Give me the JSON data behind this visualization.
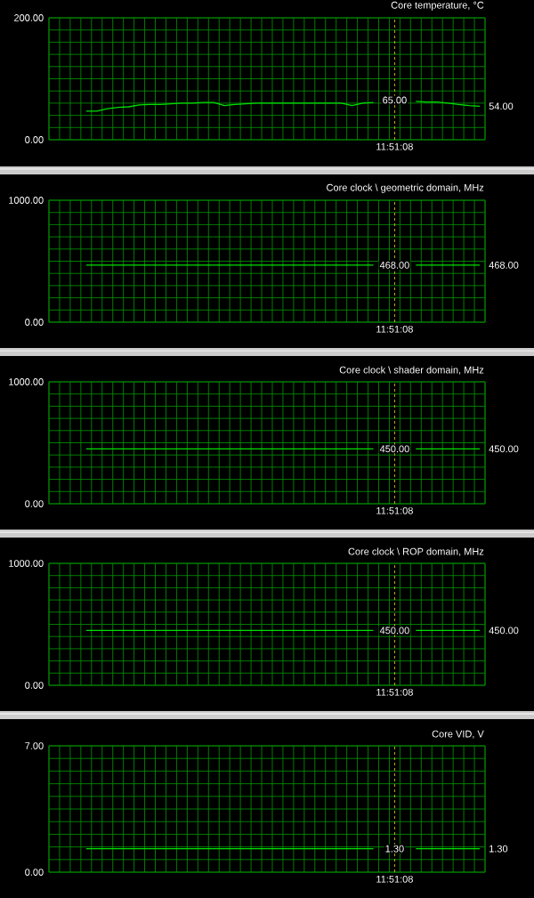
{
  "chart_data": [
    {
      "type": "line",
      "title": "Core temperature, °C",
      "grid": true,
      "categories": [
        null,
        null,
        null,
        null,
        null,
        null,
        null,
        null,
        null,
        null,
        null,
        null,
        null,
        null,
        null,
        null,
        null,
        null,
        null,
        null,
        null,
        null,
        null,
        null,
        null,
        null,
        null,
        null,
        null,
        null,
        null,
        null,
        "11:51:08",
        null,
        null,
        null,
        null,
        null,
        null,
        null,
        null
      ],
      "ylim": [
        0,
        200
      ],
      "yticks": [
        {
          "value": 0,
          "label": "0.00"
        },
        {
          "value": 20,
          "label": null
        },
        {
          "value": 40,
          "label": null
        },
        {
          "value": 60,
          "label": null
        },
        {
          "value": 80,
          "label": null
        },
        {
          "value": 100,
          "label": null
        },
        {
          "value": 120,
          "label": null
        },
        {
          "value": 140,
          "label": null
        },
        {
          "value": 160,
          "label": null
        },
        {
          "value": 180,
          "label": null
        },
        {
          "value": 200,
          "label": "200.00"
        }
      ],
      "series": [
        {
          "color": "#00e000",
          "values": [
            null,
            null,
            null,
            47,
            47,
            51,
            53,
            54,
            57,
            58,
            58,
            59,
            60,
            60,
            61,
            61,
            56,
            58,
            59,
            60,
            60,
            60,
            60,
            60,
            60,
            60,
            60,
            60,
            56,
            60,
            61,
            null,
            null,
            null,
            63,
            62,
            62,
            60,
            58,
            56,
            55
          ]
        }
      ],
      "ref_lines": [
        {
          "axis": "x",
          "value": "11:51:08",
          "color": "#c8b400",
          "line_style": "dashed"
        }
      ],
      "annotations": [
        {
          "text": "65.00",
          "x": "11:51:08",
          "y": 65
        },
        "54.00"
      ]
    },
    {
      "type": "line",
      "title": "Core clock \\ geometric domain, MHz",
      "grid": true,
      "categories": [
        null,
        null,
        null,
        null,
        null,
        null,
        null,
        null,
        null,
        null,
        null,
        null,
        null,
        null,
        null,
        null,
        null,
        null,
        null,
        null,
        null,
        null,
        null,
        null,
        null,
        null,
        null,
        null,
        null,
        null,
        null,
        null,
        "11:51:08",
        null,
        null,
        null,
        null,
        null,
        null,
        null,
        null
      ],
      "ylim": [
        0,
        1000
      ],
      "yticks": [
        {
          "value": 0,
          "label": "0.00"
        },
        {
          "value": 100,
          "label": null
        },
        {
          "value": 200,
          "label": null
        },
        {
          "value": 300,
          "label": null
        },
        {
          "value": 400,
          "label": null
        },
        {
          "value": 500,
          "label": null
        },
        {
          "value": 600,
          "label": null
        },
        {
          "value": 700,
          "label": null
        },
        {
          "value": 800,
          "label": null
        },
        {
          "value": 900,
          "label": null
        },
        {
          "value": 1000,
          "label": "1000.00"
        }
      ],
      "series": [
        {
          "color": "#00e000",
          "values": [
            null,
            null,
            null,
            468,
            468,
            468,
            468,
            468,
            468,
            468,
            468,
            468,
            468,
            468,
            468,
            468,
            468,
            468,
            468,
            468,
            468,
            468,
            468,
            468,
            468,
            468,
            468,
            468,
            468,
            468,
            468,
            null,
            null,
            null,
            468,
            468,
            468,
            468,
            468,
            468,
            468
          ]
        }
      ],
      "ref_lines": [
        {
          "axis": "x",
          "value": "11:51:08",
          "color": "#c8b400",
          "line_style": "dashed"
        }
      ],
      "annotations": [
        {
          "text": "468.00",
          "x": "11:51:08",
          "y": 468
        },
        "468.00"
      ]
    },
    {
      "type": "line",
      "title": "Core clock \\ shader domain, MHz",
      "grid": true,
      "categories": [
        null,
        null,
        null,
        null,
        null,
        null,
        null,
        null,
        null,
        null,
        null,
        null,
        null,
        null,
        null,
        null,
        null,
        null,
        null,
        null,
        null,
        null,
        null,
        null,
        null,
        null,
        null,
        null,
        null,
        null,
        null,
        null,
        "11:51:08",
        null,
        null,
        null,
        null,
        null,
        null,
        null,
        null
      ],
      "ylim": [
        0,
        1000
      ],
      "yticks": [
        {
          "value": 0,
          "label": "0.00"
        },
        {
          "value": 100,
          "label": null
        },
        {
          "value": 200,
          "label": null
        },
        {
          "value": 300,
          "label": null
        },
        {
          "value": 400,
          "label": null
        },
        {
          "value": 500,
          "label": null
        },
        {
          "value": 600,
          "label": null
        },
        {
          "value": 700,
          "label": null
        },
        {
          "value": 800,
          "label": null
        },
        {
          "value": 900,
          "label": null
        },
        {
          "value": 1000,
          "label": "1000.00"
        }
      ],
      "series": [
        {
          "color": "#00e000",
          "values": [
            null,
            null,
            null,
            450,
            450,
            450,
            450,
            450,
            450,
            450,
            450,
            450,
            450,
            450,
            450,
            450,
            450,
            450,
            450,
            450,
            450,
            450,
            450,
            450,
            450,
            450,
            450,
            450,
            450,
            450,
            450,
            null,
            null,
            null,
            450,
            450,
            450,
            450,
            450,
            450,
            450
          ]
        }
      ],
      "ref_lines": [
        {
          "axis": "x",
          "value": "11:51:08",
          "color": "#c8b400",
          "line_style": "dashed"
        }
      ],
      "annotations": [
        {
          "text": "450.00",
          "x": "11:51:08",
          "y": 450
        },
        "450.00"
      ]
    },
    {
      "type": "line",
      "title": "Core clock \\ ROP domain, MHz",
      "grid": true,
      "categories": [
        null,
        null,
        null,
        null,
        null,
        null,
        null,
        null,
        null,
        null,
        null,
        null,
        null,
        null,
        null,
        null,
        null,
        null,
        null,
        null,
        null,
        null,
        null,
        null,
        null,
        null,
        null,
        null,
        null,
        null,
        null,
        null,
        "11:51:08",
        null,
        null,
        null,
        null,
        null,
        null,
        null,
        null
      ],
      "ylim": [
        0,
        1000
      ],
      "yticks": [
        {
          "value": 0,
          "label": "0.00"
        },
        {
          "value": 100,
          "label": null
        },
        {
          "value": 200,
          "label": null
        },
        {
          "value": 300,
          "label": null
        },
        {
          "value": 400,
          "label": null
        },
        {
          "value": 500,
          "label": null
        },
        {
          "value": 600,
          "label": null
        },
        {
          "value": 700,
          "label": null
        },
        {
          "value": 800,
          "label": null
        },
        {
          "value": 900,
          "label": null
        },
        {
          "value": 1000,
          "label": "1000.00"
        }
      ],
      "series": [
        {
          "color": "#00e000",
          "values": [
            null,
            null,
            null,
            450,
            450,
            450,
            450,
            450,
            450,
            450,
            450,
            450,
            450,
            450,
            450,
            450,
            450,
            450,
            450,
            450,
            450,
            450,
            450,
            450,
            450,
            450,
            450,
            450,
            450,
            450,
            450,
            null,
            null,
            null,
            450,
            450,
            450,
            450,
            450,
            450,
            450
          ]
        }
      ],
      "ref_lines": [
        {
          "axis": "x",
          "value": "11:51:08",
          "color": "#c8b400",
          "line_style": "dashed"
        }
      ],
      "annotations": [
        {
          "text": "450.00",
          "x": "11:51:08",
          "y": 450
        },
        "450.00"
      ]
    },
    {
      "type": "line",
      "title": "Core VID, V",
      "grid": true,
      "categories": [
        null,
        null,
        null,
        null,
        null,
        null,
        null,
        null,
        null,
        null,
        null,
        null,
        null,
        null,
        null,
        null,
        null,
        null,
        null,
        null,
        null,
        null,
        null,
        null,
        null,
        null,
        null,
        null,
        null,
        null,
        null,
        null,
        "11:51:08",
        null,
        null,
        null,
        null,
        null,
        null,
        null,
        null
      ],
      "ylim": [
        0,
        7
      ],
      "yticks": [
        {
          "value": 0,
          "label": "0.00"
        },
        {
          "value": 0.7,
          "label": null
        },
        {
          "value": 1.4,
          "label": null
        },
        {
          "value": 2.1,
          "label": null
        },
        {
          "value": 2.8,
          "label": null
        },
        {
          "value": 3.5,
          "label": null
        },
        {
          "value": 4.2,
          "label": null
        },
        {
          "value": 4.9,
          "label": null
        },
        {
          "value": 5.6,
          "label": null
        },
        {
          "value": 6.3,
          "label": null
        },
        {
          "value": 7,
          "label": "7.00"
        }
      ],
      "series": [
        {
          "color": "#00e000",
          "values": [
            null,
            null,
            null,
            1.3,
            1.3,
            1.3,
            1.3,
            1.3,
            1.3,
            1.3,
            1.3,
            1.3,
            1.3,
            1.3,
            1.3,
            1.3,
            1.3,
            1.3,
            1.3,
            1.3,
            1.3,
            1.3,
            1.3,
            1.3,
            1.3,
            1.3,
            1.3,
            1.3,
            1.3,
            1.3,
            1.3,
            null,
            null,
            null,
            1.3,
            1.3,
            1.3,
            1.3,
            1.3,
            1.3,
            1.3
          ]
        }
      ],
      "ref_lines": [
        {
          "axis": "x",
          "value": "11:51:08",
          "color": "#c8b400",
          "line_style": "dashed"
        }
      ],
      "annotations": [
        {
          "text": "1.30",
          "x": "11:51:08",
          "y": 1.3
        },
        "1.30"
      ]
    }
  ]
}
